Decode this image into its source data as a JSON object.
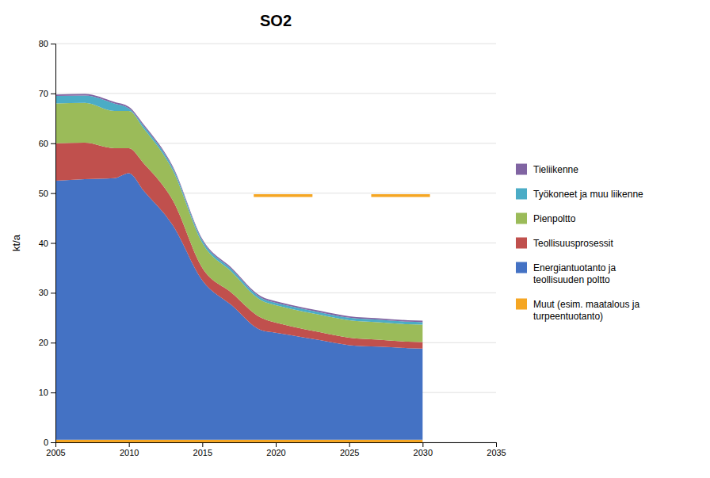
{
  "chart_data": {
    "type": "area",
    "stacked": true,
    "title": "SO2",
    "ylabel": "kt/a",
    "x": [
      2005,
      2007,
      2009,
      2010,
      2011,
      2013,
      2015,
      2017,
      2019,
      2020,
      2021,
      2023,
      2025,
      2027,
      2029,
      2030
    ],
    "series": [
      {
        "name": "Muut (esim. maatalous ja\nturpeentuotanto)",
        "color": "#F5A623",
        "values": [
          0.5,
          0.5,
          0.5,
          0.5,
          0.5,
          0.5,
          0.5,
          0.5,
          0.5,
          0.5,
          0.5,
          0.5,
          0.5,
          0.5,
          0.5,
          0.5
        ]
      },
      {
        "name": "Energiantuotanto ja\nteollisuuden poltto",
        "color": "#4472C4",
        "values": [
          52.0,
          52.3,
          52.5,
          53.5,
          50.0,
          43.0,
          32.0,
          27.0,
          22.0,
          21.5,
          21.0,
          20.0,
          19.0,
          18.7,
          18.4,
          18.3
        ]
      },
      {
        "name": "Teollisuusprosessit",
        "color": "#C0504D",
        "values": [
          7.5,
          7.3,
          6.0,
          5.0,
          5.5,
          5.0,
          2.5,
          2.5,
          2.5,
          2.0,
          1.8,
          1.6,
          1.5,
          1.4,
          1.3,
          1.3
        ]
      },
      {
        "name": "Pienpoltto",
        "color": "#9BBB59",
        "values": [
          8.0,
          8.0,
          7.5,
          7.5,
          7.0,
          6.0,
          5.0,
          4.2,
          3.5,
          3.5,
          3.5,
          3.5,
          3.5,
          3.5,
          3.5,
          3.5
        ]
      },
      {
        "name": "Työkoneet ja muu liikenne",
        "color": "#4BACC6",
        "values": [
          1.5,
          1.5,
          1.5,
          0.5,
          0.5,
          0.5,
          0.5,
          0.5,
          0.5,
          0.5,
          0.5,
          0.5,
          0.5,
          0.5,
          0.5,
          0.5
        ]
      },
      {
        "name": "Tieliikenne",
        "color": "#8064A2",
        "values": [
          0.3,
          0.3,
          0.3,
          0.3,
          0.3,
          0.3,
          0.3,
          0.3,
          0.3,
          0.3,
          0.3,
          0.3,
          0.3,
          0.3,
          0.3,
          0.3
        ]
      }
    ],
    "reference_lines": {
      "color": "#F5A623",
      "segments": [
        {
          "x": [
            2018.5,
            2022.5
          ],
          "y": [
            49.5,
            49.5
          ]
        },
        {
          "x": [
            2026.5,
            2030.5
          ],
          "y": [
            49.5,
            49.5
          ]
        }
      ]
    },
    "xlim": [
      2005,
      2035
    ],
    "xticks": [
      2005,
      2010,
      2015,
      2020,
      2025,
      2030,
      2035
    ],
    "ylim": [
      0,
      80
    ],
    "yticks": [
      0,
      10,
      20,
      30,
      40,
      50,
      60,
      70,
      80
    ],
    "grid": true,
    "legend": "right"
  }
}
